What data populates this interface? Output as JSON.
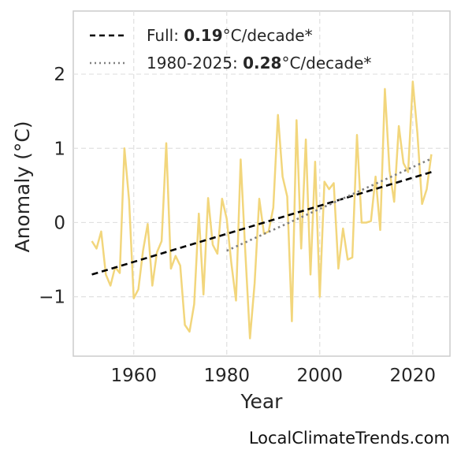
{
  "chart_data": {
    "type": "line",
    "xlabel": "Year",
    "ylabel": "Anomaly (°C)",
    "xlim": [
      1947,
      2028
    ],
    "ylim": [
      -1.8,
      2.85
    ],
    "x_ticks": [
      1960,
      1980,
      2000,
      2020
    ],
    "x_tick_labels": [
      "1960",
      "1980",
      "2000",
      "2020"
    ],
    "y_ticks": [
      -1,
      0,
      1,
      2
    ],
    "y_tick_labels": [
      "−1",
      "0",
      "1",
      "2"
    ],
    "grid": true,
    "legend_placement": "top-left",
    "series": [
      {
        "color": "#f2d67c",
        "style": "solid",
        "x": [
          1951,
          1952,
          1953,
          1954,
          1955,
          1956,
          1957,
          1958,
          1959,
          1960,
          1961,
          1962,
          1963,
          1964,
          1965,
          1966,
          1967,
          1968,
          1969,
          1970,
          1971,
          1972,
          1973,
          1974,
          1975,
          1976,
          1977,
          1978,
          1979,
          1980,
          1981,
          1982,
          1983,
          1984,
          1985,
          1986,
          1987,
          1988,
          1989,
          1990,
          1991,
          1992,
          1993,
          1994,
          1995,
          1996,
          1997,
          1998,
          1999,
          2000,
          2001,
          2002,
          2003,
          2004,
          2005,
          2006,
          2007,
          2008,
          2009,
          2010,
          2011,
          2012,
          2013,
          2014,
          2015,
          2016,
          2017,
          2018,
          2019,
          2020,
          2021,
          2022,
          2023,
          2024
        ],
        "y": [
          -0.25,
          -0.35,
          -0.12,
          -0.7,
          -0.85,
          -0.6,
          -0.68,
          1.0,
          0.3,
          -1.02,
          -0.9,
          -0.38,
          -0.02,
          -0.85,
          -0.4,
          -0.25,
          1.07,
          -0.62,
          -0.45,
          -0.58,
          -1.38,
          -1.47,
          -1.1,
          0.12,
          -0.97,
          0.33,
          -0.3,
          -0.42,
          0.32,
          0.05,
          -0.55,
          -1.05,
          0.85,
          -0.4,
          -1.56,
          -0.82,
          0.32,
          -0.15,
          -0.12,
          0.2,
          1.45,
          0.62,
          0.35,
          -1.33,
          1.38,
          -0.35,
          1.12,
          -0.7,
          0.82,
          -1.0,
          0.55,
          0.45,
          0.53,
          -0.62,
          -0.08,
          -0.5,
          -0.47,
          1.18,
          0.0,
          0.0,
          0.02,
          0.62,
          -0.1,
          1.8,
          0.7,
          0.28,
          1.3,
          0.8,
          0.68,
          1.9,
          1.2,
          0.25,
          0.45,
          0.92
        ]
      },
      {
        "name": "Full",
        "color": "#000000",
        "style": "dashed",
        "x": [
          1951,
          2024
        ],
        "y": [
          -0.7,
          0.68
        ]
      },
      {
        "name": "1980-2025",
        "color": "#808080",
        "style": "dotted",
        "x": [
          1980,
          2024
        ],
        "y": [
          -0.38,
          0.86
        ]
      }
    ],
    "legend": [
      {
        "prefix": "Full: ",
        "value": "0.19",
        "suffix": "°C/decade*"
      },
      {
        "prefix": "1980-2025: ",
        "value": "0.28",
        "suffix": "°C/decade*"
      }
    ]
  },
  "source_label": "LocalClimateTrends.com"
}
